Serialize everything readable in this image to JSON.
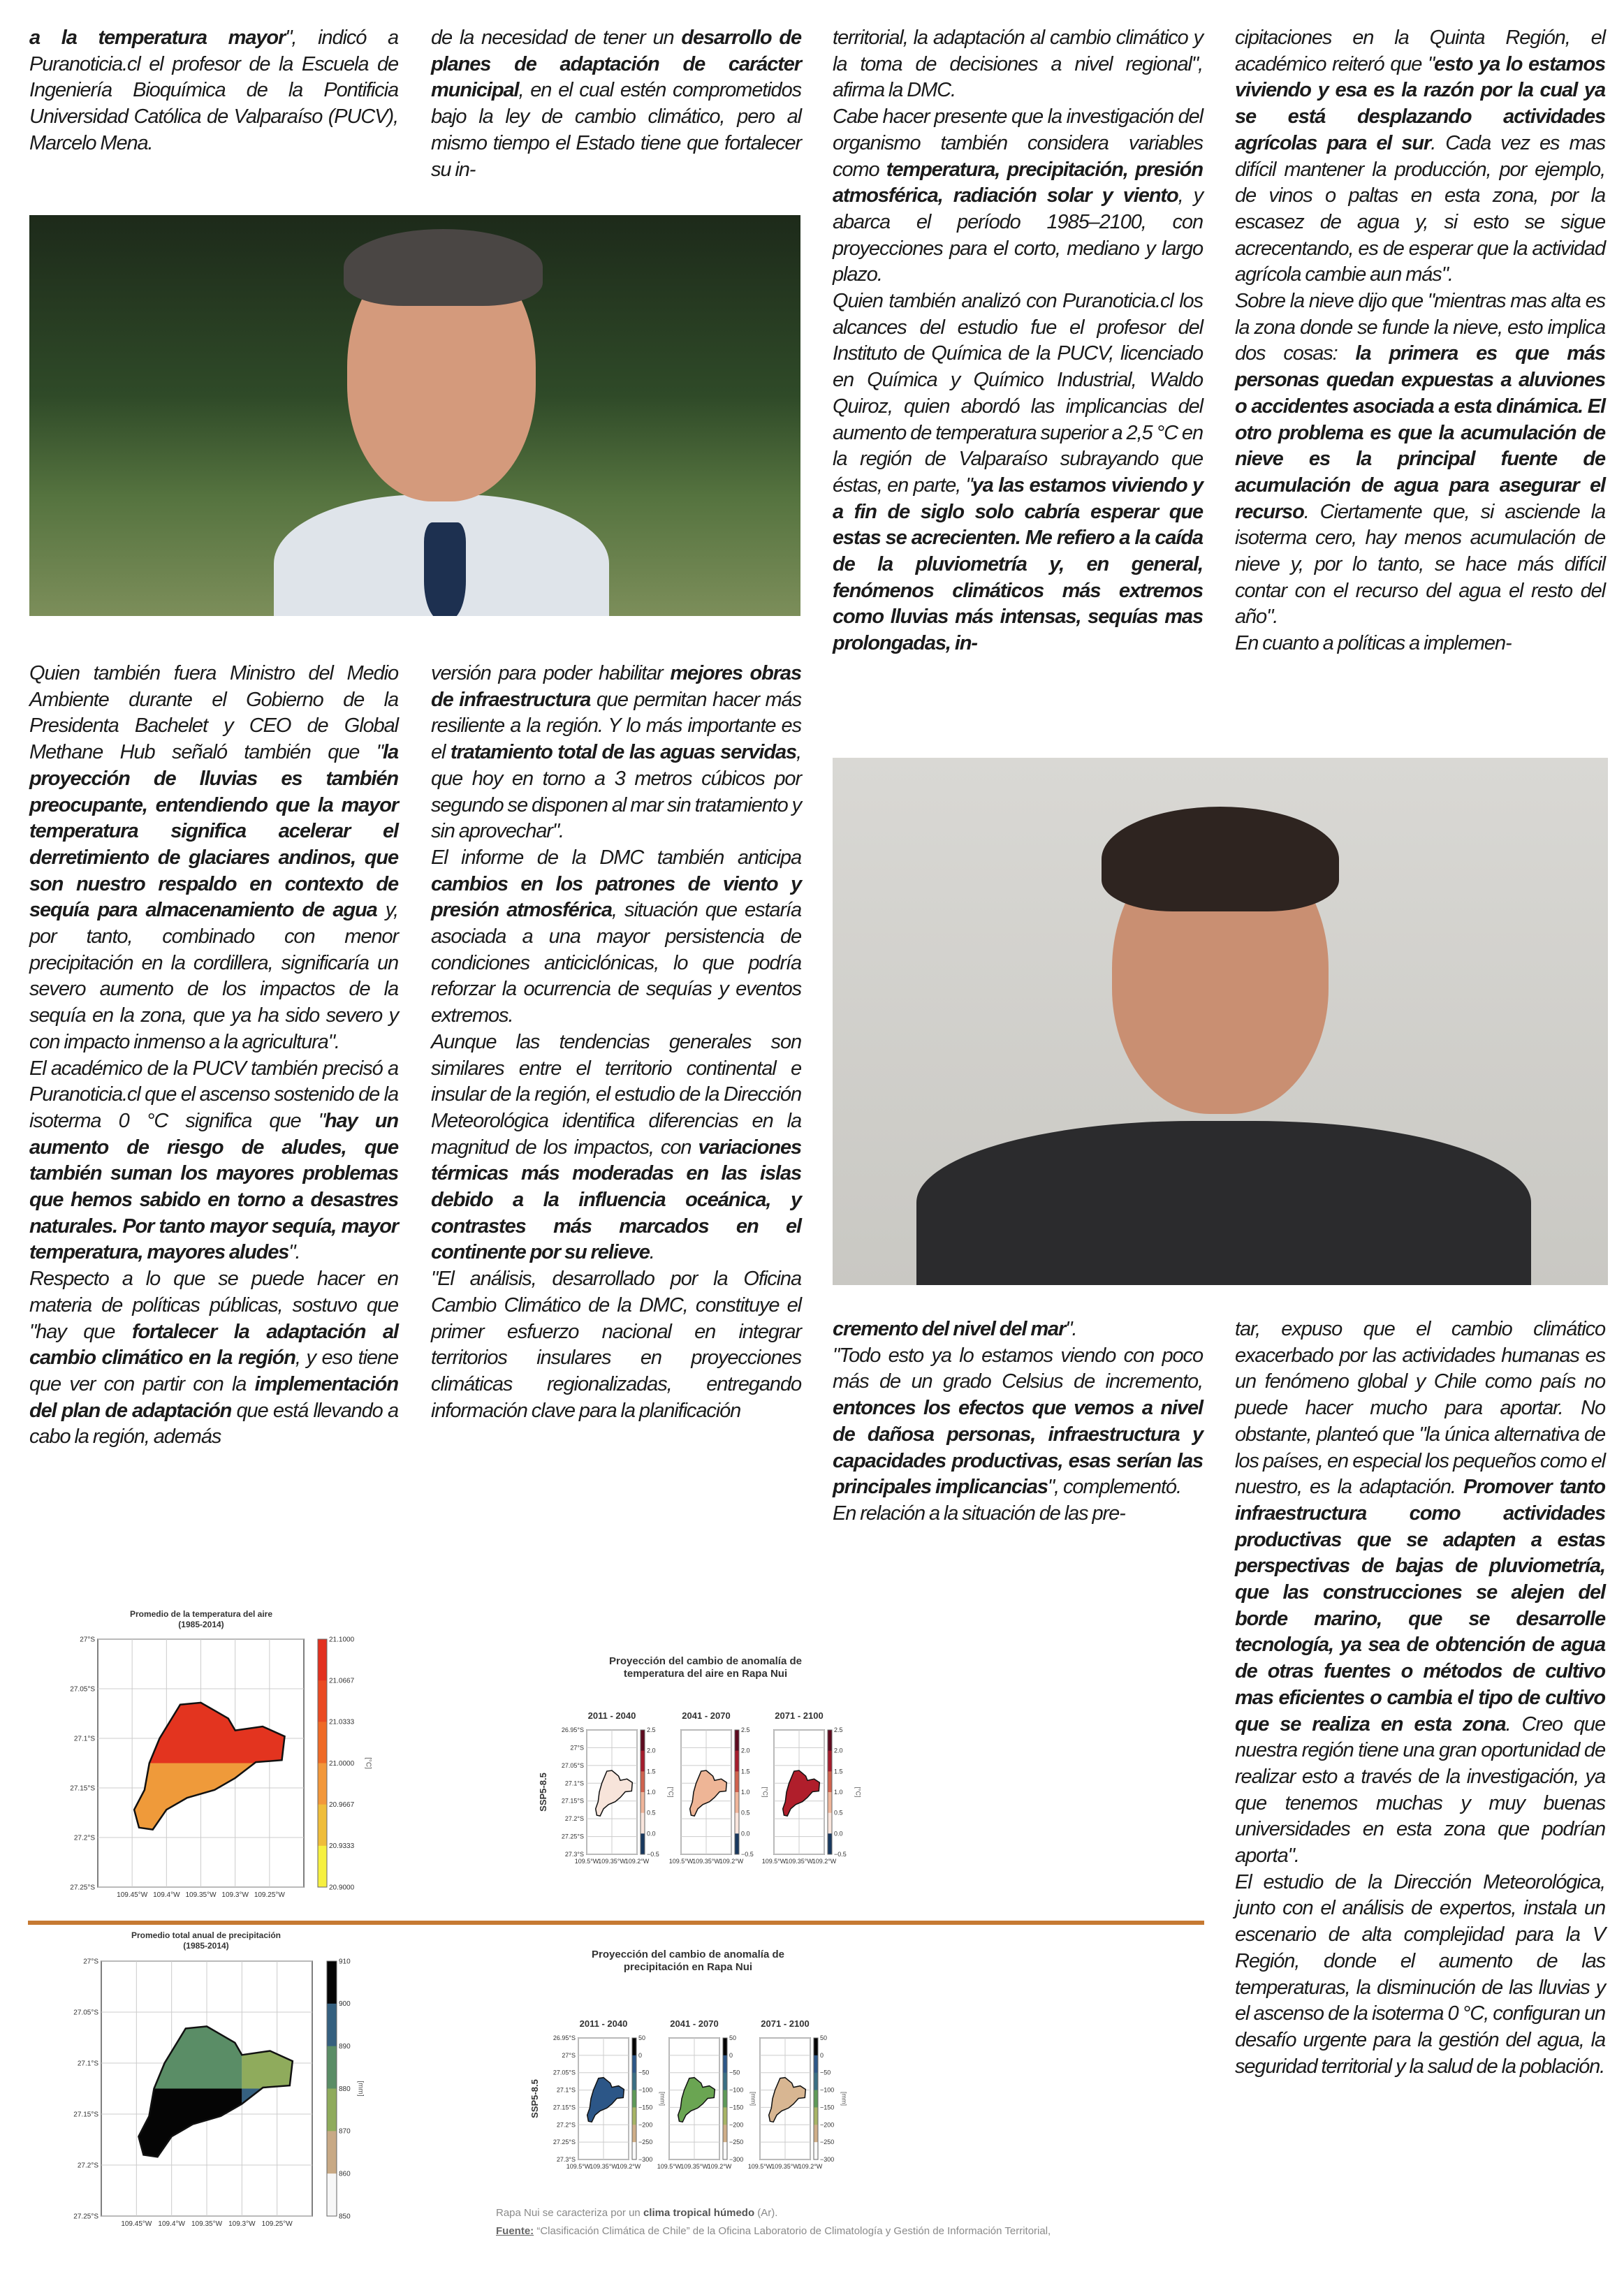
{
  "article": {
    "blocks": {
      "c1top": [
        [
          {
            "t": "a la temperatura mayor",
            "b": true
          },
          {
            "t": "\", indicó a Puranoticia.cl el profesor de la Escuela de Ingeniería Bioquímica de la Pontificia Universidad Católica de Valparaíso (PUCV), Marcelo Mena."
          }
        ]
      ],
      "c2top": [
        [
          {
            "t": "de la necesidad de tener un "
          },
          {
            "t": "desarrollo de planes de adaptación de carácter municipal",
            "b": true
          },
          {
            "t": ", en el cual estén comprometidos bajo la ley de cambio climático, pero al mismo tiempo el Estado tiene que fortalecer su in-"
          }
        ]
      ],
      "c1bot": [
        [
          {
            "t": "Quien también fuera Ministro del Medio Ambiente durante el Gobierno de la Presidenta Bachelet y CEO de Global Methane Hub señaló también que \""
          },
          {
            "t": "la proyección de lluvias es también preocupante, entendiendo que la mayor temperatura significa acelerar el derretimiento de glaciares andinos, que son nuestro respaldo en contexto de sequía para almacenamiento de agua",
            "b": true
          },
          {
            "t": " y, por tanto, combinado con menor precipitación en la cordillera, significaría un severo aumento de los impactos de la sequía en la zona, que ya ha sido severo y con impacto inmenso a la agricultura\"."
          }
        ],
        [
          {
            "t": "El académico de la PUCV también precisó a Puranoticia.cl que el ascenso sostenido de la isoterma 0 °C significa que \""
          },
          {
            "t": "hay un aumento de riesgo de aludes, que también suman los mayores problemas que hemos sabido en torno a desastres naturales. Por tanto mayor sequía, mayor temperatura, mayores aludes",
            "b": true
          },
          {
            "t": "\"."
          }
        ],
        [
          {
            "t": "Respecto a lo que se puede hacer en materia de políticas públicas, sostuvo que \"hay que "
          },
          {
            "t": "fortalecer la adaptación al cambio climático en la región",
            "b": true
          },
          {
            "t": ", y eso tiene que ver con partir con la "
          },
          {
            "t": "implementación del plan de adaptación",
            "b": true
          },
          {
            "t": " que está llevando a cabo la región, además"
          }
        ]
      ],
      "c2bot": [
        [
          {
            "t": "versión para poder habilitar "
          },
          {
            "t": "mejores obras de infraestructura",
            "b": true
          },
          {
            "t": " que permitan hacer más resiliente a la región. Y lo más importante es el "
          },
          {
            "t": "tratamiento total de las aguas servidas",
            "b": true
          },
          {
            "t": ", que hoy en torno a 3 metros cúbicos por segundo se disponen al mar sin tratamiento y sin aprovechar\"."
          }
        ],
        [
          {
            "t": "El informe de la DMC también anticipa "
          },
          {
            "t": "cambios en los patrones de viento y presión atmosférica",
            "b": true
          },
          {
            "t": ", situación que estaría asociada a una mayor persistencia de condiciones anticiclónicas, lo que podría reforzar la ocurrencia de sequías y eventos extremos."
          }
        ],
        [
          {
            "t": "Aunque las tendencias generales son similares entre el territorio continental e insular de la región, el estudio de la Dirección Meteorológica identifica diferencias en la magnitud de los impactos, con "
          },
          {
            "t": "variaciones térmicas más moderadas en las islas debido a la influencia oceánica, y contrastes más marcados en el continente por su relieve",
            "b": true
          },
          {
            "t": "."
          }
        ],
        [
          {
            "t": "\"El análisis, desarrollado por la Oficina Cambio Climático de la DMC, constituye el primer esfuerzo nacional en integrar territorios insulares en proyecciones climáticas regionalizadas, entregando información clave para la planificación"
          }
        ]
      ],
      "c3top": [
        [
          {
            "t": "territorial, la adaptación al cambio climático y la toma de decisiones a nivel regional\", afirma la DMC."
          }
        ],
        [
          {
            "t": "Cabe hacer presente que la investigación del organismo también considera variables como "
          },
          {
            "t": "temperatura, precipitación, presión atmosférica, radiación solar y viento",
            "b": true
          },
          {
            "t": ", y abarca el período 1985–2100, con proyecciones para el corto, mediano y largo plazo."
          }
        ],
        [
          {
            "t": "Quien también analizó con Puranoticia.cl los alcances del estudio fue el profesor del Instituto de Química de la PUCV, licenciado en Química y Químico Industrial, Waldo Quiroz, quien abordó las implicancias del aumento de temperatura superior a 2,5 °C en la región de Valparaíso subrayando que éstas, en parte, \""
          },
          {
            "t": "ya las estamos viviendo y a fin de siglo solo cabría esperar que estas se acrecienten. Me refiero a la caída de la pluviometría y, en general, fenómenos climáticos más extremos como lluvias más intensas, sequías mas prolongadas, in-",
            "b": true
          }
        ]
      ],
      "c3bot": [
        [
          {
            "t": "cremento del nivel del mar",
            "b": true
          },
          {
            "t": "\"."
          }
        ],
        [
          {
            "t": "\"Todo esto ya lo estamos viendo con poco más de un grado Celsius de incremento, "
          },
          {
            "t": "entonces los efectos que vemos a nivel de dañosa personas, infraestructura y capacidades productivas, esas serían las principales implicancias",
            "b": true
          },
          {
            "t": "\", complementó."
          }
        ],
        [
          {
            "t": "En relación a la situación de las pre-"
          }
        ]
      ],
      "c4top": [
        [
          {
            "t": "cipitaciones en la Quinta Región, el académico reiteró que \""
          },
          {
            "t": "esto ya lo estamos viviendo y esa es la razón por la cual ya se está desplazando actividades agrícolas para el sur",
            "b": true
          },
          {
            "t": ". Cada vez es mas difícil mantener la producción, por ejemplo, de vinos o paltas en esta zona, por la escasez de agua y, si esto se sigue acrecentando, es de esperar que la actividad agrícola cambie aun más\"."
          }
        ],
        [
          {
            "t": "Sobre la nieve dijo que \"mientras mas alta es la zona donde se funde la nieve, esto implica dos cosas: "
          },
          {
            "t": "la primera es que más personas quedan expuestas a aluviones o accidentes asociada a esta dinámica. El otro problema es que la acumulación de nieve es la principal fuente de acumulación de agua para asegurar el recurso",
            "b": true
          },
          {
            "t": ". Ciertamente que, si asciende la isoterma cero, hay menos acumulación de nieve y, por lo tanto, se hace más difícil contar con el recurso del agua el resto del año\"."
          }
        ],
        [
          {
            "t": "En cuanto a políticas a implemen-"
          }
        ]
      ],
      "c4bot": [
        [
          {
            "t": "tar, expuso que el cambio climático exacerbado por las actividades humanas es un fenómeno global y Chile como país no puede hacer mucho para aportar. No obstante, planteó que \"la única alternativa de los países, en especial los pequeños como el nuestro, es la adaptación. "
          },
          {
            "t": "Promover tanto infraestructura como actividades productivas que se adapten a estas perspectivas de bajas de pluviometría, que las construcciones se alejen del borde marino, que se desarrolle tecnología, ya sea de obtención de agua de otras fuentes o métodos de cultivo mas eficientes o cambia el tipo de cultivo que se realiza en esta zona",
            "b": true
          },
          {
            "t": ". Creo que nuestra región tiene una gran oportunidad de realizar esto a través de la investigación, ya que tenemos muchas y muy buenas universidades en esta zona que podrían aporta\"."
          }
        ],
        [
          {
            "t": "El estudio de la Dirección Meteorológica, junto con el análisis de expertos, instala un escenario de alta complejidad para la V Región, donde el aumento de las temperaturas, la disminución de las lluvias y el ascenso de la isoterma 0 °C, configuran un desafío urgente para la gestión del agua, la seguridad territorial y la salud de la población."
          }
        ]
      ]
    }
  },
  "figures": {
    "temp_avg": {
      "title_lines": [
        "Promedio de la temperatura del aire",
        "(1985-2014)"
      ],
      "y_ticks": [
        "27°S",
        "27.05°S",
        "27.1°S",
        "27.15°S",
        "27.2°S",
        "27.25°S"
      ],
      "x_ticks": [
        "109.45°W",
        "109.4°W",
        "109.35°W",
        "109.3°W",
        "109.25°W"
      ],
      "colorbar_ticks": [
        "21.1000",
        "21.0667",
        "21.0333",
        "21.0000",
        "20.9667",
        "20.9333",
        "20.9000"
      ],
      "colorbar_colors": [
        "#e2301f",
        "#ea4a22",
        "#ef6a26",
        "#f2973a",
        "#efbd3a",
        "#f6f040"
      ],
      "unit": "[°C]",
      "region_colors": {
        "north": "#e3341f",
        "south": "#ef9a3a"
      }
    },
    "precip_avg": {
      "title_lines": [
        "Promedio total anual de precipitación",
        "(1985-2014)"
      ],
      "y_ticks": [
        "27°S",
        "27.05°S",
        "27.1°S",
        "27.15°S",
        "27.2°S",
        "27.25°S"
      ],
      "x_ticks": [
        "109.45°W",
        "109.4°W",
        "109.35°W",
        "109.3°W",
        "109.25°W"
      ],
      "colorbar_ticks": [
        "910",
        "900",
        "890",
        "880",
        "870",
        "860",
        "850"
      ],
      "colorbar_colors": [
        "#050505",
        "#35607f",
        "#5a8d66",
        "#8fab5c",
        "#c8a985",
        "#f7f7f7"
      ],
      "unit": "[mm]",
      "region_colors": {
        "northwest": "#5a8d66",
        "northeast": "#8fab5c",
        "southwest": "#050505",
        "southeast": "#35607f"
      }
    },
    "temp_proj": {
      "title_lines": [
        "Proyección del cambio de anomalía de",
        "temperatura del aire en Rapa Nui"
      ],
      "scenario": "SSP5-8.5",
      "panels": [
        {
          "label": "2011 - 2040",
          "fill": "#f7e4da"
        },
        {
          "label": "2041 - 2070",
          "fill": "#eeb596"
        },
        {
          "label": "2071 - 2100",
          "fill": "#b01e2b"
        }
      ],
      "y_ticks": [
        "26.95°S",
        "27°S",
        "27.05°S",
        "27.1°S",
        "27.15°S",
        "27.2°S",
        "27.25°S",
        "27.3°S"
      ],
      "x_ticks": [
        "109.5°W",
        "109.35°W",
        "109.2°W"
      ],
      "colorbar_ticks": [
        "2.5",
        "2.0",
        "1.5",
        "1.0",
        "0.5",
        "0.0",
        "−0.5"
      ],
      "colorbar_colors": [
        "#5e0a1f",
        "#a51c2c",
        "#d0624e",
        "#f0b59a",
        "#f9e5dc",
        "#18385e"
      ],
      "unit": "[°C]"
    },
    "precip_proj": {
      "title_lines": [
        "Proyección del cambio de anomalía de",
        "precipitación en Rapa Nui"
      ],
      "scenario": "SSP5-8.5",
      "panels": [
        {
          "label": "2011 - 2040",
          "fill": "#2c5687"
        },
        {
          "label": "2041 - 2070",
          "fill": "#6aa552"
        },
        {
          "label": "2071 - 2100",
          "fill": "#d8b692"
        }
      ],
      "y_ticks": [
        "26.95°S",
        "27°S",
        "27.05°S",
        "27.1°S",
        "27.15°S",
        "27.2°S",
        "27.25°S",
        "27.3°S"
      ],
      "x_ticks": [
        "109.5°W",
        "109.35°W",
        "109.2°W"
      ],
      "colorbar_ticks": [
        "50",
        "0",
        "−50",
        "−100",
        "−150",
        "−200",
        "−250",
        "−300"
      ],
      "colorbar_colors": [
        "#050505",
        "#2c5687",
        "#3a6f84",
        "#5e9a58",
        "#a7b465",
        "#cfae88",
        "#fafafa"
      ],
      "unit": "[mm]"
    },
    "caption": {
      "line1_pre": "Rapa Nui se caracteriza por un ",
      "line1_bold": "clima tropical húmedo",
      "line1_post": " (Ar).",
      "source_label": "Fuente:",
      "source_text": " “Clasificación Climática de Chile” de la Oficina Laboratorio de Climatología y Gestión de Información Territorial,"
    }
  }
}
